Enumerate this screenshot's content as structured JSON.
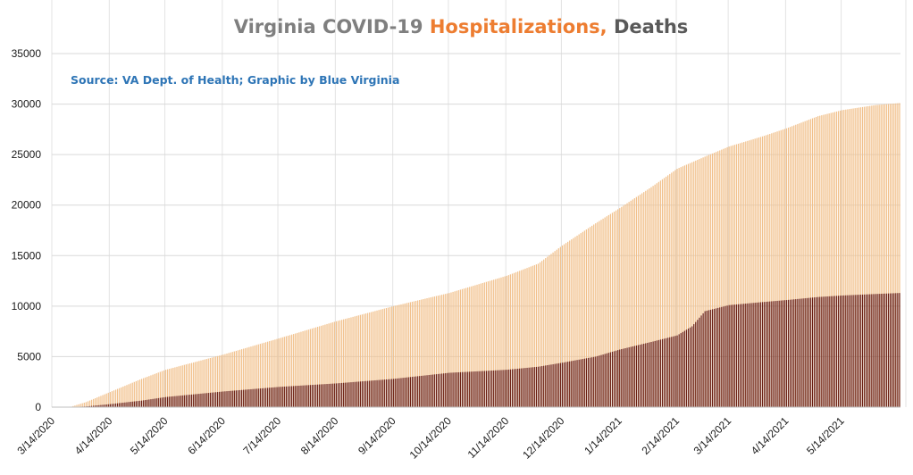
{
  "chart_data": {
    "type": "bar",
    "title_parts": [
      {
        "text": "Virginia COVID-19 ",
        "color": "#7f7f7f"
      },
      {
        "text": "Hospitalizations, ",
        "color": "#ed7d31"
      },
      {
        "text": "Deaths",
        "color": "#595959"
      }
    ],
    "source_note": "Source: VA Dept. of Health; Graphic by Blue Virginia",
    "source_color": "#2e75b6",
    "xlabel": "",
    "ylabel": "",
    "ylim": [
      0,
      35000
    ],
    "y_ticks": [
      0,
      5000,
      10000,
      15000,
      20000,
      25000,
      30000,
      35000
    ],
    "x_start_date": "3/14/2020",
    "x_end_date": "6/14/2021",
    "x_tick_labels": [
      "3/14/2020",
      "4/14/2020",
      "5/14/2020",
      "6/14/2020",
      "7/14/2020",
      "8/14/2020",
      "9/14/2020",
      "10/14/2020",
      "11/14/2020",
      "12/14/2020",
      "1/14/2021",
      "2/14/2021",
      "3/14/2021",
      "4/14/2021",
      "5/14/2021"
    ],
    "grid": true,
    "bar_mode": "overlapping",
    "series": [
      {
        "name": "Hospitalizations",
        "color": "#f1c08b",
        "keypoints": [
          [
            "3/14/2020",
            0
          ],
          [
            "3/24/2020",
            50
          ],
          [
            "4/1/2020",
            500
          ],
          [
            "4/14/2020",
            1500
          ],
          [
            "5/1/2020",
            2800
          ],
          [
            "5/14/2020",
            3700
          ],
          [
            "6/14/2020",
            5200
          ],
          [
            "7/14/2020",
            6800
          ],
          [
            "8/14/2020",
            8500
          ],
          [
            "9/14/2020",
            10000
          ],
          [
            "10/14/2020",
            11300
          ],
          [
            "11/14/2020",
            13000
          ],
          [
            "12/1/2020",
            14200
          ],
          [
            "12/14/2020",
            16000
          ],
          [
            "1/1/2021",
            18200
          ],
          [
            "1/14/2021",
            19700
          ],
          [
            "2/1/2021",
            21900
          ],
          [
            "2/14/2021",
            23600
          ],
          [
            "3/1/2021",
            24800
          ],
          [
            "3/14/2021",
            25800
          ],
          [
            "4/1/2021",
            26800
          ],
          [
            "4/14/2021",
            27600
          ],
          [
            "5/1/2021",
            28800
          ],
          [
            "5/14/2021",
            29400
          ],
          [
            "6/1/2021",
            29900
          ],
          [
            "6/14/2021",
            30100
          ]
        ]
      },
      {
        "name": "Deaths",
        "color": "#6b1f12",
        "keypoints": [
          [
            "3/14/2020",
            0
          ],
          [
            "3/24/2020",
            10
          ],
          [
            "4/1/2020",
            70
          ],
          [
            "4/14/2020",
            300
          ],
          [
            "5/1/2020",
            650
          ],
          [
            "5/14/2020",
            1000
          ],
          [
            "6/14/2020",
            1550
          ],
          [
            "7/14/2020",
            2000
          ],
          [
            "8/14/2020",
            2350
          ],
          [
            "9/14/2020",
            2800
          ],
          [
            "10/14/2020",
            3400
          ],
          [
            "11/14/2020",
            3700
          ],
          [
            "12/1/2020",
            4000
          ],
          [
            "12/14/2020",
            4400
          ],
          [
            "1/1/2021",
            5000
          ],
          [
            "1/14/2021",
            5700
          ],
          [
            "2/1/2021",
            6500
          ],
          [
            "2/14/2021",
            7100
          ],
          [
            "2/22/2021",
            8000
          ],
          [
            "3/1/2021",
            9500
          ],
          [
            "3/14/2021",
            10100
          ],
          [
            "4/1/2021",
            10400
          ],
          [
            "4/14/2021",
            10600
          ],
          [
            "5/1/2021",
            10900
          ],
          [
            "5/14/2021",
            11050
          ],
          [
            "6/1/2021",
            11200
          ],
          [
            "6/14/2021",
            11300
          ]
        ]
      }
    ]
  }
}
